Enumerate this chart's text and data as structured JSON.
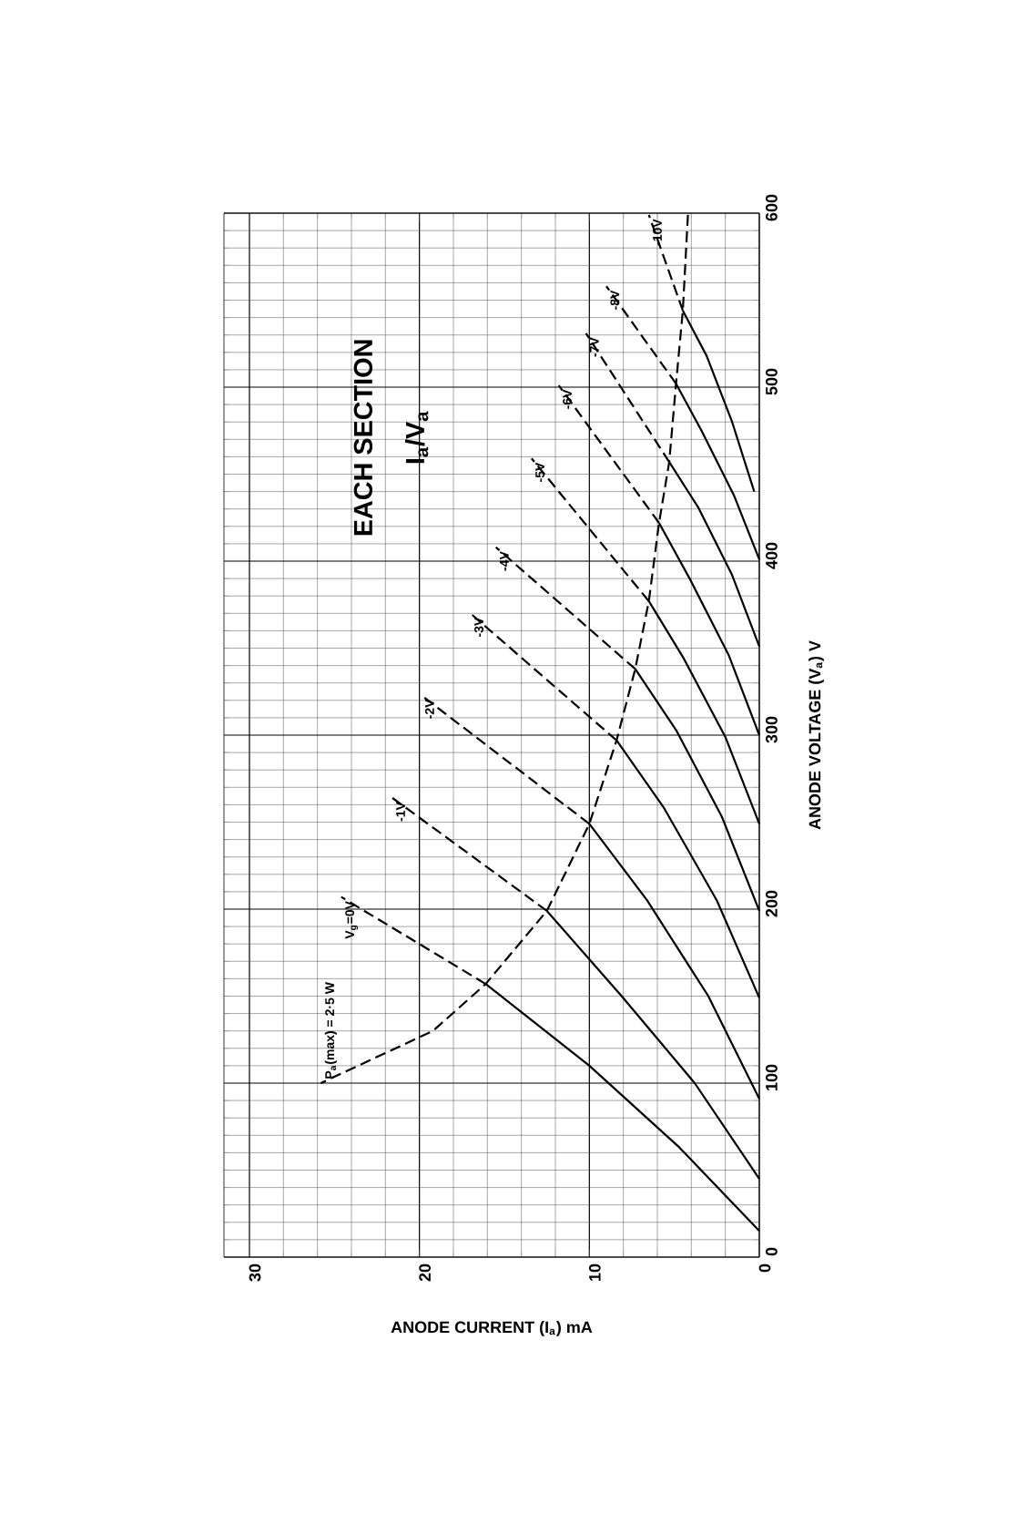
{
  "chart_data": {
    "type": "line",
    "title": "EACH SECTION",
    "subtitle": "I$_{a}$/V$_{a}$",
    "xlabel": "ANODE CURRENT (I$_{a}$) mA",
    "ylabel": "ANODE VOLTAGE (V$_{a}$) V",
    "xlim": [
      31.5,
      0
    ],
    "ylim": [
      0,
      600
    ],
    "xticks": [
      30,
      20,
      10,
      0
    ],
    "yticks": [
      0,
      100,
      200,
      300,
      400,
      500,
      600
    ],
    "grid": true,
    "legend": false,
    "series": [
      {
        "color": "#000000",
        "line_style": "solid",
        "x": [
          0,
          4.7,
          10.0,
          16.1
        ],
        "values": [
          15,
          63,
          110,
          157
        ]
      },
      {
        "name": "V$_{g}$=0V",
        "color": "#000000",
        "line_style": "dashed",
        "x": [
          16.1,
          24.6
        ],
        "values": [
          157,
          207
        ]
      },
      {
        "color": "#000000",
        "line_style": "solid",
        "x": [
          0,
          3.8,
          8.1,
          12.5
        ],
        "values": [
          45,
          100,
          150,
          199
        ]
      },
      {
        "name": "-1V",
        "color": "#000000",
        "line_style": "dashed",
        "x": [
          12.5,
          21.6
        ],
        "values": [
          199,
          264
        ]
      },
      {
        "color": "#000000",
        "line_style": "solid",
        "x": [
          0,
          3.0,
          6.6,
          10.0
        ],
        "values": [
          91,
          150,
          205,
          249
        ]
      },
      {
        "name": "-2V",
        "color": "#000000",
        "line_style": "dashed",
        "x": [
          10.0,
          19.9
        ],
        "values": [
          249,
          323
        ]
      },
      {
        "color": "#000000",
        "line_style": "solid",
        "x": [
          0,
          2.5,
          5.6,
          8.4
        ],
        "values": [
          149,
          205,
          258,
          297
        ]
      },
      {
        "name": "-3V",
        "color": "#000000",
        "line_style": "dashed",
        "x": [
          8.4,
          17.0
        ],
        "values": [
          297,
          370
        ]
      },
      {
        "color": "#000000",
        "line_style": "solid",
        "x": [
          0,
          2.2,
          4.9,
          7.3
        ],
        "values": [
          199,
          253,
          303,
          338
        ]
      },
      {
        "name": "-4V",
        "color": "#000000",
        "line_style": "dashed",
        "x": [
          7.3,
          15.5
        ],
        "values": [
          338,
          408
        ]
      },
      {
        "color": "#000000",
        "line_style": "solid",
        "x": [
          0,
          2.0,
          4.5,
          6.5
        ],
        "values": [
          249,
          299,
          345,
          377
        ]
      },
      {
        "name": "-5V",
        "color": "#000000",
        "line_style": "dashed",
        "x": [
          6.5,
          13.4
        ],
        "values": [
          377,
          459
        ]
      },
      {
        "color": "#000000",
        "line_style": "solid",
        "x": [
          0,
          1.8,
          4.1,
          5.9
        ],
        "values": [
          300,
          346,
          390,
          422
        ]
      },
      {
        "name": "-6V",
        "color": "#000000",
        "line_style": "dashed",
        "x": [
          5.9,
          11.8
        ],
        "values": [
          422,
          501
        ]
      },
      {
        "color": "#000000",
        "line_style": "solid",
        "x": [
          0,
          1.6,
          3.6,
          5.3
        ],
        "values": [
          351,
          392,
          431,
          457
        ]
      },
      {
        "name": "-7V",
        "color": "#000000",
        "line_style": "dashed",
        "x": [
          5.3,
          10.2
        ],
        "values": [
          457,
          531
        ]
      },
      {
        "color": "#000000",
        "line_style": "solid",
        "x": [
          0,
          1.5,
          3.4,
          4.9
        ],
        "values": [
          401,
          438,
          475,
          502
        ]
      },
      {
        "name": "-8V",
        "color": "#000000",
        "line_style": "dashed",
        "x": [
          4.9,
          9.0
        ],
        "values": [
          502,
          558
        ]
      },
      {
        "color": "#000000",
        "line_style": "solid",
        "x": [
          0.3,
          1.6,
          3.1,
          4.5
        ],
        "values": [
          440,
          480,
          518,
          544
        ]
      },
      {
        "name": "-10V",
        "color": "#000000",
        "line_style": "dashed",
        "x": [
          4.5,
          6.5
        ],
        "values": [
          544,
          599
        ]
      },
      {
        "name": "P$_{a}$(max) = 2·5 W",
        "color": "#000000",
        "line_style": "dashed",
        "x": [
          4.2,
          4.5,
          4.9,
          5.3,
          5.9,
          6.5,
          7.3,
          8.4,
          10.0,
          12.5,
          16.1,
          19.2,
          25.8
        ],
        "values": [
          599,
          544,
          502,
          457,
          422,
          377,
          338,
          297,
          249,
          199,
          157,
          130,
          100
        ]
      }
    ]
  }
}
